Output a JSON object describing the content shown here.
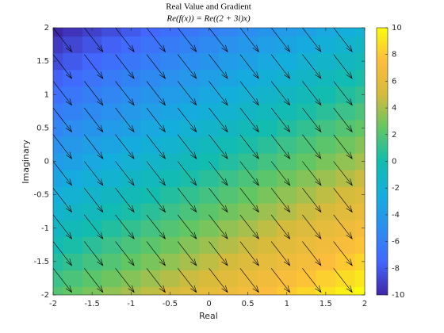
{
  "chart_data": {
    "type": "heatmap-quiver",
    "title": "Real Value and Gradient",
    "subtitle": "Re(f(x)) = Re((2 + 3i)x)",
    "x_label": "Real",
    "y_label": "Imaginary",
    "x": [
      -2,
      -1.75,
      -1.5,
      -1.25,
      -1,
      -0.75,
      -0.5,
      -0.25,
      0,
      0.25,
      0.5,
      0.75,
      1,
      1.25,
      1.5,
      1.75,
      2
    ],
    "y": [
      -2,
      -1.75,
      -1.5,
      -1.25,
      -1,
      -0.75,
      -0.5,
      -0.25,
      0,
      0.25,
      0.5,
      0.75,
      1,
      1.25,
      1.5,
      1.75,
      2
    ],
    "z": [
      [
        2,
        2.5,
        3,
        3.5,
        4,
        4.5,
        5,
        5.5,
        6,
        6.5,
        7,
        7.5,
        8,
        8.5,
        9,
        9.5,
        10
      ],
      [
        1.25,
        1.75,
        2.25,
        2.75,
        3.25,
        3.75,
        4.25,
        4.75,
        5.25,
        5.75,
        6.25,
        6.75,
        7.25,
        7.75,
        8.25,
        8.75,
        9.25
      ],
      [
        0.5,
        1,
        1.5,
        2,
        2.5,
        3,
        3.5,
        4,
        4.5,
        5,
        5.5,
        6,
        6.5,
        7,
        7.5,
        8,
        8.5
      ],
      [
        -0.25,
        0.25,
        0.75,
        1.25,
        1.75,
        2.25,
        2.75,
        3.25,
        3.75,
        4.25,
        4.75,
        5.25,
        5.75,
        6.25,
        6.75,
        7.25,
        7.75
      ],
      [
        -1,
        -0.5,
        0,
        0.5,
        1,
        1.5,
        2,
        2.5,
        3,
        3.5,
        4,
        4.5,
        5,
        5.5,
        6,
        6.5,
        7
      ],
      [
        -1.75,
        -1.25,
        -0.75,
        -0.25,
        0.25,
        0.75,
        1.25,
        1.75,
        2.25,
        2.75,
        3.25,
        3.75,
        4.25,
        4.75,
        5.25,
        5.75,
        6.25
      ],
      [
        -2.5,
        -2,
        -1.5,
        -1,
        -0.5,
        0,
        0.5,
        1,
        1.5,
        2,
        2.5,
        3,
        3.5,
        4,
        4.5,
        5,
        5.5
      ],
      [
        -3.25,
        -2.75,
        -2.25,
        -1.75,
        -1.25,
        -0.75,
        -0.25,
        0.25,
        0.75,
        1.25,
        1.75,
        2.25,
        2.75,
        3.25,
        3.75,
        4.25,
        4.75
      ],
      [
        -4,
        -3.5,
        -3,
        -2.5,
        -2,
        -1.5,
        -1,
        -0.5,
        0,
        0.5,
        1,
        1.5,
        2,
        2.5,
        3,
        3.5,
        4
      ],
      [
        -4.75,
        -4.25,
        -3.75,
        -3.25,
        -2.75,
        -2.25,
        -1.75,
        -1.25,
        -0.75,
        -0.25,
        0.25,
        0.75,
        1.25,
        1.75,
        2.25,
        2.75,
        3.25
      ],
      [
        -5.5,
        -5,
        -4.5,
        -4,
        -3.5,
        -3,
        -2.5,
        -2,
        -1.5,
        -1,
        -0.5,
        0,
        0.5,
        1,
        1.5,
        2,
        2.5
      ],
      [
        -6.25,
        -5.75,
        -5.25,
        -4.75,
        -4.25,
        -3.75,
        -3.25,
        -2.75,
        -2.25,
        -1.75,
        -1.25,
        -0.75,
        -0.25,
        0.25,
        0.75,
        1.25,
        1.75
      ],
      [
        -7,
        -6.5,
        -6,
        -5.5,
        -5,
        -4.5,
        -4,
        -3.5,
        -3,
        -2.5,
        -2,
        -1.5,
        -1,
        -0.5,
        0,
        0.5,
        1
      ],
      [
        -7.75,
        -7.25,
        -6.75,
        -6.25,
        -5.75,
        -5.25,
        -4.75,
        -4.25,
        -3.75,
        -3.25,
        -2.75,
        -2.25,
        -1.75,
        -1.25,
        -0.75,
        -0.25,
        0.25
      ],
      [
        -8.5,
        -8,
        -7.5,
        -7,
        -6.5,
        -6,
        -5.5,
        -5,
        -4.5,
        -4,
        -3.5,
        -3,
        -2.5,
        -2,
        -1.5,
        -1,
        -0.5
      ],
      [
        -9.25,
        -8.75,
        -8.25,
        -7.75,
        -7.25,
        -6.75,
        -6.25,
        -5.75,
        -5.25,
        -4.75,
        -4.25,
        -3.75,
        -3.25,
        -2.75,
        -2.25,
        -1.75,
        -1.25
      ],
      [
        -10,
        -9.5,
        -9,
        -8.5,
        -8,
        -7.5,
        -7,
        -6.5,
        -6,
        -5.5,
        -5,
        -4.5,
        -4,
        -3.5,
        -3,
        -2.5,
        -2
      ]
    ],
    "quiver": {
      "x": [
        -2,
        -1.6,
        -1.2,
        -0.8,
        -0.4,
        0,
        0.4,
        0.8,
        1.2,
        1.6,
        2
      ],
      "y": [
        -2,
        -1.6,
        -1.2,
        -0.8,
        -0.4,
        0,
        0.4,
        0.8,
        1.2,
        1.6,
        2
      ],
      "u": 2,
      "v": -3,
      "color": "#000000"
    },
    "colormap": "parula",
    "clim": [
      -10,
      10
    ],
    "cticks": [
      -10,
      -8,
      -6,
      -4,
      -2,
      0,
      2,
      4,
      6,
      8,
      10
    ],
    "xlim": [
      -2,
      2
    ],
    "xticks": [
      -2,
      -1.5,
      -1,
      -0.5,
      0,
      0.5,
      1,
      1.5,
      2
    ],
    "ylim": [
      -2,
      2
    ],
    "yticks": [
      -2,
      -1.5,
      -1,
      -0.5,
      0,
      0.5,
      1,
      1.5,
      2
    ]
  }
}
